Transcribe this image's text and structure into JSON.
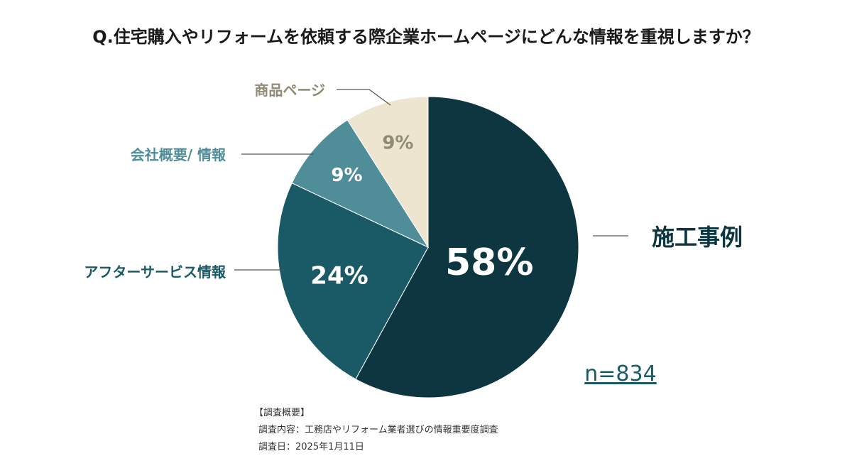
{
  "chart_data": {
    "type": "pie",
    "title": "Q.住宅購入やリフォームを依頼する際企業ホームページにどんな情報を重視しますか？",
    "sample_size_label": "n=834",
    "slices": [
      {
        "label": "施工事例",
        "value": 58,
        "value_label": "58%",
        "color": "#0d3640",
        "label_color": "#0d3640",
        "value_color": "#ffffff"
      },
      {
        "label": "アフターサービス情報",
        "value": 24,
        "value_label": "24%",
        "color": "#195a66",
        "label_color": "#195a66",
        "value_color": "#ffffff"
      },
      {
        "label": "会社概要/ 情報",
        "value": 9,
        "value_label": "9%",
        "color": "#4f8d99",
        "label_color": "#4f8d99",
        "value_color": "#ffffff"
      },
      {
        "label": "商品ページ",
        "value": 9,
        "value_label": "9%",
        "color": "#ede5d0",
        "label_color": "#8f8a73",
        "value_color": "#8f8a73"
      }
    ]
  },
  "survey": {
    "heading": "【調査概要】",
    "content": "調査内容：工務店やリフォーム業者選びの情報重要度調査",
    "date": "調査日：2025年1月11日"
  }
}
